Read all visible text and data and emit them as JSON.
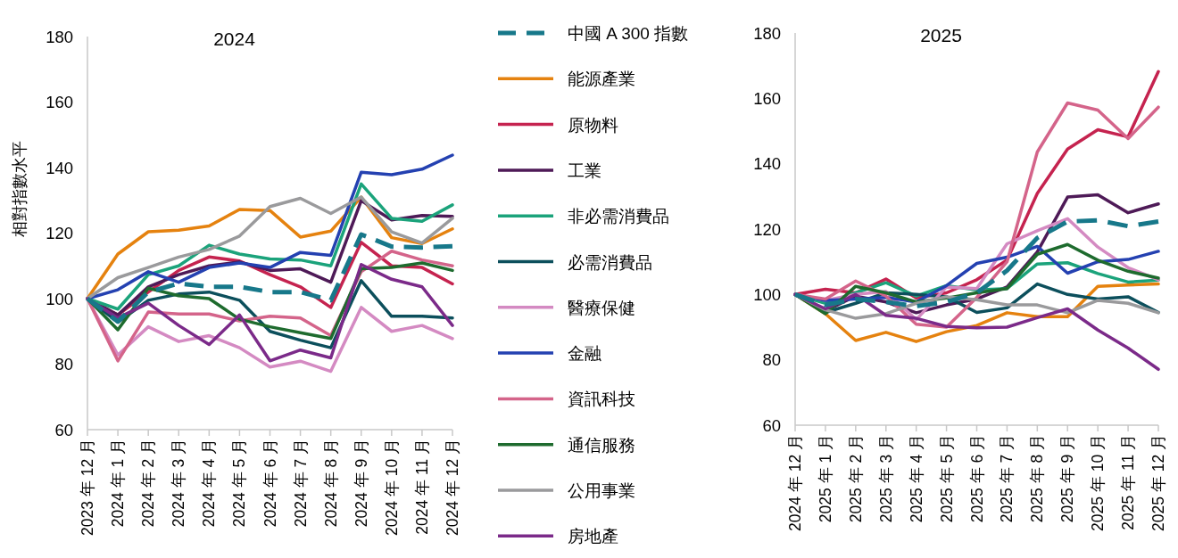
{
  "chart_data": [
    {
      "type": "line",
      "title": "2024",
      "ylabel": "相對指數水平",
      "categories": [
        "2023 年 12 月",
        "2024 年 1 月",
        "2024 年 2 月",
        "2024 年 3 月",
        "2024 年 4 月",
        "2024 年 5 月",
        "2024 年 6 月",
        "2024 年 7 月",
        "2024 年 8 月",
        "2024 年 9 月",
        "2024 年 10 月",
        "2024 年 11 月",
        "2024 年 12 月"
      ],
      "ylim": [
        60,
        180
      ],
      "yticks": [
        60,
        80,
        100,
        120,
        140,
        160,
        180
      ],
      "grid": false,
      "legend": "right",
      "marker": "none",
      "series": [
        {
          "name": "中國 A 300 指數",
          "color": "#17788a",
          "line_style": "dashed",
          "values": [
            100,
            93,
            102,
            104.6,
            103.6,
            103.6,
            102,
            102,
            99.5,
            119.6,
            115.9,
            115.6,
            116
          ]
        },
        {
          "name": "能源產業",
          "color": "#e5820f",
          "values": [
            100,
            113.6,
            120.4,
            120.9,
            122.2,
            127.2,
            126.9,
            118.8,
            120.6,
            131,
            118.6,
            116.8,
            121.3
          ]
        },
        {
          "name": "原物料",
          "color": "#c5234f",
          "values": [
            100,
            95,
            102,
            108.6,
            112.7,
            111.5,
            107.3,
            103.6,
            97.3,
            117.2,
            110,
            109.5,
            104.5
          ]
        },
        {
          "name": "工業",
          "color": "#4e1a57",
          "values": [
            100,
            95,
            103.6,
            107.3,
            110,
            111.2,
            108.6,
            109.1,
            105,
            129.9,
            124,
            125.4,
            125.1
          ]
        },
        {
          "name": "非必需消費品",
          "color": "#1ba37b",
          "values": [
            100,
            96.8,
            107.3,
            110,
            116.3,
            113.6,
            112.1,
            111.8,
            110,
            135,
            124.5,
            123.6,
            128.6
          ]
        },
        {
          "name": "必需消費品",
          "color": "#0c4f5c",
          "values": [
            100,
            92.8,
            99.5,
            101.4,
            102,
            99.5,
            90,
            87.3,
            85,
            105.5,
            94.6,
            94.6,
            94.1
          ]
        },
        {
          "name": "醫療保健",
          "color": "#d48ac2",
          "values": [
            100,
            82.8,
            91.4,
            86.9,
            88.7,
            85,
            79.1,
            80.9,
            77.8,
            97.3,
            90,
            91.8,
            87.8
          ]
        },
        {
          "name": "金融",
          "color": "#2441b1",
          "values": [
            100,
            102.7,
            108.2,
            105,
            109.5,
            110.9,
            109.5,
            114.1,
            113.2,
            138.6,
            137.8,
            139.5,
            143.8
          ]
        },
        {
          "name": "資訊科技",
          "color": "#d4648a",
          "values": [
            100,
            81,
            95.9,
            95.3,
            95.3,
            93.2,
            94.6,
            94.1,
            88.7,
            108.2,
            114.5,
            111.8,
            110
          ]
        },
        {
          "name": "通信服務",
          "color": "#1e6b2e",
          "values": [
            100,
            90.5,
            103.2,
            100.9,
            100,
            93.7,
            91.4,
            89.6,
            87.8,
            109.1,
            109.5,
            110.9,
            108.6
          ]
        },
        {
          "name": "公用事業",
          "color": "#9a9a9c",
          "values": [
            100,
            106.4,
            109.5,
            112.7,
            115,
            119.1,
            128.1,
            130.6,
            126,
            131,
            120.4,
            117,
            124.5
          ]
        },
        {
          "name": "房地產",
          "color": "#7b2a89",
          "values": [
            100,
            94.1,
            98.6,
            91.8,
            86,
            95,
            81,
            84.3,
            81.9,
            110.4,
            105.9,
            103.6,
            91.8
          ]
        }
      ]
    },
    {
      "type": "line",
      "title": "2025",
      "categories": [
        "2024 年 12 月",
        "2025 年 1 月",
        "2025 年 2 月",
        "2025 年 3 月",
        "2025 年 4 月",
        "2025 年 5 月",
        "2025 年 6 月",
        "2025 年 7 月",
        "2025 年 8 月",
        "2025 年 9 月",
        "2025 年 10 月",
        "2025 年 11 月",
        "2025 年 12 月"
      ],
      "ylim": [
        60,
        180
      ],
      "yticks": [
        60,
        80,
        100,
        120,
        140,
        160,
        180
      ],
      "grid": false,
      "legend": false,
      "marker": "none",
      "series": [
        {
          "color": "#17788a",
          "line_style": "dashed",
          "values": [
            100,
            96.8,
            98.6,
            97.7,
            96.4,
            97.7,
            100.5,
            107.3,
            117.3,
            122.3,
            122.7,
            120.9,
            122.3
          ]
        },
        {
          "color": "#e5820f",
          "values": [
            100,
            94.1,
            85.9,
            88.4,
            85.6,
            88.6,
            90.5,
            94.4,
            93.2,
            93.2,
            102.5,
            102.9,
            103.2
          ]
        },
        {
          "color": "#c5234f",
          "values": [
            100,
            101.6,
            100.5,
            104.7,
            98.9,
            100.5,
            104.5,
            110.5,
            130.9,
            144.5,
            150.4,
            148.2,
            168.2
          ]
        },
        {
          "color": "#4e1a57",
          "values": [
            100,
            95,
            99.5,
            97.7,
            94.4,
            96.8,
            98.6,
            102.3,
            113,
            129.8,
            130.5,
            125,
            127.7
          ]
        },
        {
          "color": "#1ba37b",
          "values": [
            100,
            97.3,
            100.5,
            103.6,
            99.5,
            102.7,
            101.4,
            101.8,
            109.3,
            109.7,
            106.4,
            103.8,
            104.4
          ]
        },
        {
          "color": "#0c4f5c",
          "values": [
            100,
            94.5,
            97.3,
            100.5,
            100,
            99.3,
            94.5,
            95.9,
            103.2,
            100,
            98.6,
            99.3,
            94.5
          ]
        },
        {
          "color": "#d48ac2",
          "values": [
            100,
            98.2,
            100,
            100.9,
            92.3,
            102.3,
            101.8,
            115.5,
            119.5,
            123.2,
            114.5,
            108.2,
            104.5
          ]
        },
        {
          "color": "#2441b1",
          "values": [
            100,
            98.2,
            98.6,
            99.1,
            97.7,
            102.7,
            109.5,
            111.4,
            114.7,
            106.5,
            110,
            110.7,
            113.2
          ]
        },
        {
          "color": "#d4648a",
          "values": [
            100,
            98.6,
            104.1,
            99.5,
            90.9,
            90,
            99.1,
            110,
            143.6,
            158.6,
            156.4,
            147.7,
            157.3
          ]
        },
        {
          "color": "#1e6b2e",
          "values": [
            100,
            94.1,
            102.5,
            100.5,
            97.7,
            98.9,
            100.5,
            101.8,
            112.3,
            115.3,
            110.5,
            107.1,
            105
          ]
        },
        {
          "color": "#9a9a9c",
          "values": [
            100,
            95.3,
            92.7,
            94.1,
            97.3,
            99.3,
            98.4,
            96.8,
            96.8,
            94.4,
            98.2,
            97.3,
            94.4
          ]
        },
        {
          "color": "#7b2a89",
          "values": [
            100,
            95.6,
            100,
            93.6,
            92.7,
            90.2,
            89.8,
            90,
            92.9,
            95.6,
            89.1,
            83.6,
            77.1
          ]
        }
      ]
    }
  ]
}
